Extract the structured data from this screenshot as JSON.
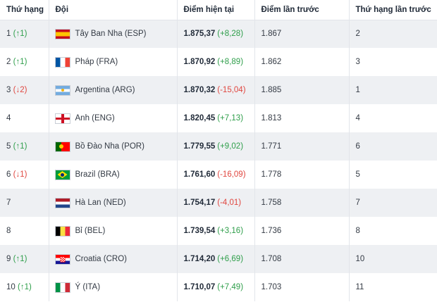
{
  "headers": {
    "rank": "Thứ hạng",
    "team": "Đội",
    "current_points": "Điểm hiện tại",
    "previous_points": "Điểm lần trước",
    "previous_rank": "Thứ hạng lần trước"
  },
  "colors": {
    "up": "#2e9e4a",
    "down": "#e0463f",
    "stripe": "#eef0f3"
  },
  "rows": [
    {
      "rank": "1",
      "move": "(↑1)",
      "dir": "up",
      "flag": "spain-flag-icon",
      "team": "Tây Ban Nha (ESP)",
      "points": "1.875,37",
      "change": "(+8,28)",
      "change_dir": "up",
      "prev_points": "1.867",
      "prev_rank": "2"
    },
    {
      "rank": "2",
      "move": "(↑1)",
      "dir": "up",
      "flag": "france-flag-icon",
      "team": "Pháp (FRA)",
      "points": "1.870,92",
      "change": "(+8,89)",
      "change_dir": "up",
      "prev_points": "1.862",
      "prev_rank": "3"
    },
    {
      "rank": "3",
      "move": "(↓2)",
      "dir": "down",
      "flag": "argentina-flag-icon",
      "team": "Argentina (ARG)",
      "points": "1.870,32",
      "change": "(-15,04)",
      "change_dir": "down",
      "prev_points": "1.885",
      "prev_rank": "1"
    },
    {
      "rank": "4",
      "move": "",
      "dir": "",
      "flag": "england-flag-icon",
      "team": "Anh (ENG)",
      "points": "1.820,45",
      "change": "(+7,13)",
      "change_dir": "up",
      "prev_points": "1.813",
      "prev_rank": "4"
    },
    {
      "rank": "5",
      "move": "(↑1)",
      "dir": "up",
      "flag": "portugal-flag-icon",
      "team": "Bồ Đào Nha (POR)",
      "points": "1.779,55",
      "change": "(+9,02)",
      "change_dir": "up",
      "prev_points": "1.771",
      "prev_rank": "6"
    },
    {
      "rank": "6",
      "move": "(↓1)",
      "dir": "down",
      "flag": "brazil-flag-icon",
      "team": "Brazil (BRA)",
      "points": "1.761,60",
      "change": "(-16,09)",
      "change_dir": "down",
      "prev_points": "1.778",
      "prev_rank": "5"
    },
    {
      "rank": "7",
      "move": "",
      "dir": "",
      "flag": "netherlands-flag-icon",
      "team": "Hà Lan (NED)",
      "points": "1.754,17",
      "change": "(-4,01)",
      "change_dir": "down",
      "prev_points": "1.758",
      "prev_rank": "7"
    },
    {
      "rank": "8",
      "move": "",
      "dir": "",
      "flag": "belgium-flag-icon",
      "team": "Bỉ (BEL)",
      "points": "1.739,54",
      "change": "(+3,16)",
      "change_dir": "up",
      "prev_points": "1.736",
      "prev_rank": "8"
    },
    {
      "rank": "9",
      "move": "(↑1)",
      "dir": "up",
      "flag": "croatia-flag-icon",
      "team": "Croatia (CRO)",
      "points": "1.714,20",
      "change": "(+6,69)",
      "change_dir": "up",
      "prev_points": "1.708",
      "prev_rank": "10"
    },
    {
      "rank": "10",
      "move": "(↑1)",
      "dir": "up",
      "flag": "italy-flag-icon",
      "team": "Ý (ITA)",
      "points": "1.710,07",
      "change": "(+7,49)",
      "change_dir": "up",
      "prev_points": "1.703",
      "prev_rank": "11"
    }
  ]
}
